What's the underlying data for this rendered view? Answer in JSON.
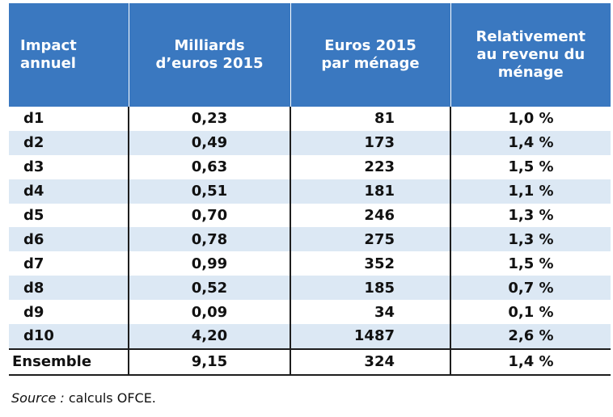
{
  "table": {
    "headers": [
      [
        "Impact",
        "annuel"
      ],
      [
        "Milliards",
        "d’euros 2015"
      ],
      [
        "Euros 2015",
        "par ménage"
      ],
      [
        "Relativement",
        "au revenu du",
        "ménage"
      ]
    ],
    "rows": [
      {
        "label": "d1",
        "milliards": "0,23",
        "euros": "81",
        "relatif": "1,0 %"
      },
      {
        "label": "d2",
        "milliards": "0,49",
        "euros": "173",
        "relatif": "1,4 %"
      },
      {
        "label": "d3",
        "milliards": "0,63",
        "euros": "223",
        "relatif": "1,5 %"
      },
      {
        "label": "d4",
        "milliards": "0,51",
        "euros": "181",
        "relatif": "1,1 %"
      },
      {
        "label": "d5",
        "milliards": "0,70",
        "euros": "246",
        "relatif": "1,3 %"
      },
      {
        "label": "d6",
        "milliards": "0,78",
        "euros": "275",
        "relatif": "1,3 %"
      },
      {
        "label": "d7",
        "milliards": "0,99",
        "euros": "352",
        "relatif": "1,5 %"
      },
      {
        "label": "d8",
        "milliards": "0,52",
        "euros": "185",
        "relatif": "0,7 %"
      },
      {
        "label": "d9",
        "milliards": "0,09",
        "euros": "34",
        "relatif": "0,1 %"
      },
      {
        "label": "d10",
        "milliards": "4,20",
        "euros": "1487",
        "relatif": "2,6 %"
      }
    ],
    "total": {
      "label": "Ensemble",
      "milliards": "9,15",
      "euros": "324",
      "relatif": "1,4 %"
    }
  },
  "source": {
    "label": "Source :",
    "text": "calculs OFCE."
  },
  "colors": {
    "header_bg": "#3a78c0",
    "stripe_bg": "#dce8f4"
  }
}
